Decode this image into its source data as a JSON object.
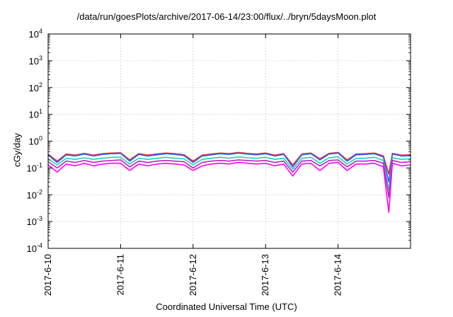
{
  "chart_data": {
    "type": "line",
    "title": "/data/run/goesPlots/archive/2017-06-14/23:00/flux/../bryn/5daysMoon.plot",
    "xlabel": "Coordinated Universal Time (UTC)",
    "ylabel": "cGy/day",
    "yscale": "log",
    "ylim": [
      0.0001,
      10000
    ],
    "y_ticks": [
      {
        "value": 0.0001,
        "base": "10",
        "exp": "-4"
      },
      {
        "value": 0.001,
        "base": "10",
        "exp": "-3"
      },
      {
        "value": 0.01,
        "base": "10",
        "exp": "-2"
      },
      {
        "value": 0.1,
        "base": "10",
        "exp": "-1"
      },
      {
        "value": 1,
        "base": "10",
        "exp": "0"
      },
      {
        "value": 10,
        "base": "10",
        "exp": "1"
      },
      {
        "value": 100,
        "base": "10",
        "exp": "2"
      },
      {
        "value": 1000,
        "base": "10",
        "exp": "3"
      },
      {
        "value": 10000,
        "base": "10",
        "exp": "4"
      }
    ],
    "x_ticks": [
      "2017-6-10",
      "2017-6-11",
      "2017-6-12",
      "2017-6-13",
      "2017-6-14"
    ],
    "xlim": [
      "2017-06-10 00:00",
      "2017-06-15 00:00"
    ],
    "grid": true,
    "x": [
      "2017-06-10 00:00",
      "2017-06-10 03:00",
      "2017-06-10 06:00",
      "2017-06-10 09:00",
      "2017-06-10 12:00",
      "2017-06-10 15:00",
      "2017-06-10 18:00",
      "2017-06-10 21:00",
      "2017-06-11 00:00",
      "2017-06-11 03:00",
      "2017-06-11 06:00",
      "2017-06-11 09:00",
      "2017-06-11 12:00",
      "2017-06-11 15:00",
      "2017-06-11 18:00",
      "2017-06-11 21:00",
      "2017-06-12 00:00",
      "2017-06-12 03:00",
      "2017-06-12 06:00",
      "2017-06-12 09:00",
      "2017-06-12 12:00",
      "2017-06-12 15:00",
      "2017-06-12 18:00",
      "2017-06-12 21:00",
      "2017-06-13 00:00",
      "2017-06-13 03:00",
      "2017-06-13 06:00",
      "2017-06-13 09:00",
      "2017-06-13 12:00",
      "2017-06-13 15:00",
      "2017-06-13 18:00",
      "2017-06-13 21:00",
      "2017-06-14 00:00",
      "2017-06-14 03:00",
      "2017-06-14 06:00",
      "2017-06-14 09:00",
      "2017-06-14 12:00",
      "2017-06-14 15:00",
      "2017-06-14 16:48",
      "2017-06-14 18:00",
      "2017-06-14 21:00",
      "2017-06-15 00:00"
    ],
    "series": [
      {
        "color": "#ff2020",
        "values": [
          0.32,
          0.18,
          0.33,
          0.3,
          0.35,
          0.3,
          0.34,
          0.36,
          0.37,
          0.2,
          0.34,
          0.3,
          0.33,
          0.36,
          0.34,
          0.31,
          0.18,
          0.3,
          0.33,
          0.36,
          0.34,
          0.38,
          0.35,
          0.33,
          0.36,
          0.3,
          0.34,
          0.13,
          0.33,
          0.36,
          0.22,
          0.35,
          0.38,
          0.2,
          0.33,
          0.34,
          0.36,
          0.28,
          0.06,
          0.35,
          0.3,
          0.31
        ]
      },
      {
        "color": "#2060ff",
        "values": [
          0.3,
          0.16,
          0.31,
          0.28,
          0.33,
          0.28,
          0.32,
          0.34,
          0.35,
          0.18,
          0.32,
          0.28,
          0.31,
          0.34,
          0.32,
          0.29,
          0.16,
          0.28,
          0.31,
          0.34,
          0.32,
          0.36,
          0.33,
          0.31,
          0.34,
          0.28,
          0.32,
          0.11,
          0.31,
          0.34,
          0.2,
          0.33,
          0.36,
          0.18,
          0.31,
          0.32,
          0.34,
          0.26,
          0.03,
          0.33,
          0.28,
          0.29
        ]
      },
      {
        "color": "#20d0b0",
        "values": [
          0.22,
          0.13,
          0.23,
          0.21,
          0.24,
          0.21,
          0.23,
          0.25,
          0.25,
          0.14,
          0.23,
          0.21,
          0.23,
          0.25,
          0.23,
          0.22,
          0.13,
          0.21,
          0.23,
          0.25,
          0.23,
          0.26,
          0.24,
          0.23,
          0.25,
          0.21,
          0.23,
          0.09,
          0.23,
          0.25,
          0.15,
          0.24,
          0.26,
          0.14,
          0.23,
          0.23,
          0.25,
          0.19,
          0.015,
          0.24,
          0.21,
          0.22
        ]
      },
      {
        "color": "#c020c0",
        "values": [
          0.17,
          0.1,
          0.18,
          0.16,
          0.19,
          0.16,
          0.18,
          0.19,
          0.2,
          0.11,
          0.18,
          0.16,
          0.18,
          0.19,
          0.18,
          0.17,
          0.1,
          0.16,
          0.18,
          0.19,
          0.18,
          0.2,
          0.19,
          0.18,
          0.19,
          0.16,
          0.18,
          0.07,
          0.18,
          0.19,
          0.12,
          0.19,
          0.2,
          0.11,
          0.18,
          0.18,
          0.19,
          0.15,
          0.008,
          0.19,
          0.16,
          0.17
        ]
      },
      {
        "color": "#ff00ff",
        "values": [
          0.13,
          0.07,
          0.14,
          0.12,
          0.15,
          0.12,
          0.14,
          0.15,
          0.15,
          0.08,
          0.14,
          0.12,
          0.14,
          0.15,
          0.14,
          0.13,
          0.08,
          0.12,
          0.14,
          0.15,
          0.14,
          0.16,
          0.15,
          0.14,
          0.15,
          0.12,
          0.14,
          0.05,
          0.14,
          0.15,
          0.08,
          0.15,
          0.16,
          0.08,
          0.14,
          0.14,
          0.15,
          0.11,
          0.0022,
          0.15,
          0.12,
          0.13
        ]
      }
    ]
  }
}
